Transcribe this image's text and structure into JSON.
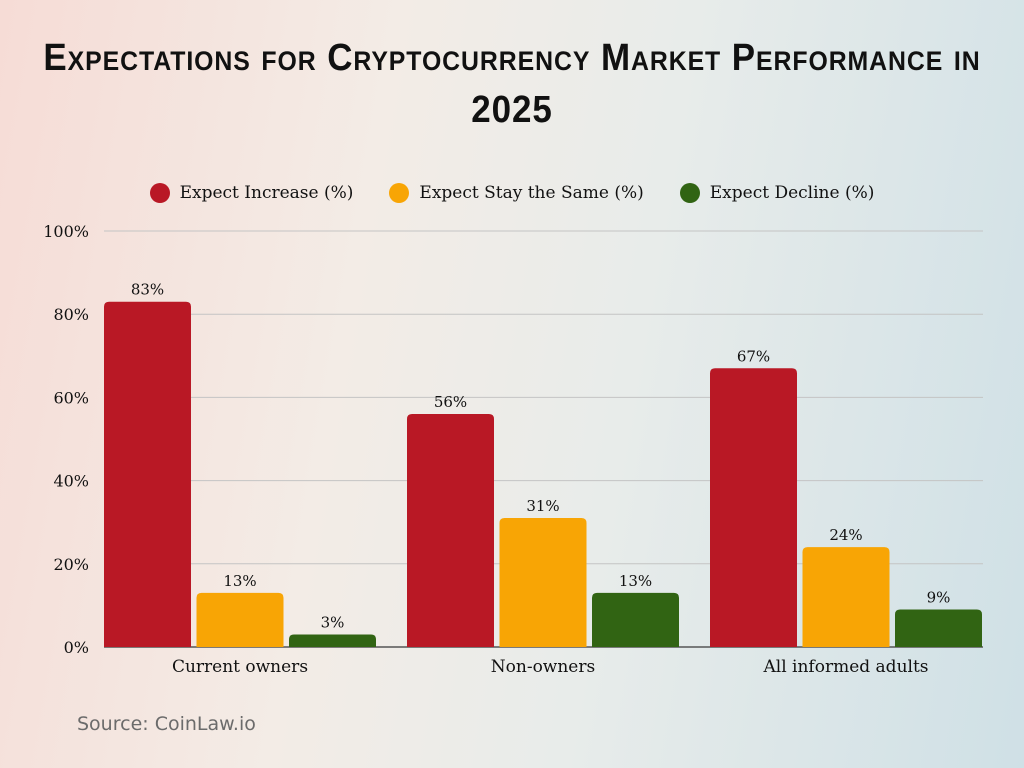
{
  "chart_data": {
    "type": "bar",
    "title": "Expectations for Cryptocurrency Market Performance in 2025",
    "categories": [
      "Current owners",
      "Non-owners",
      "All informed adults"
    ],
    "series": [
      {
        "name": "Expect Increase (%)",
        "color": "#b91825",
        "values": [
          83,
          56,
          67
        ],
        "labels": [
          "83%",
          "56%",
          "67%"
        ]
      },
      {
        "name": "Expect Stay the Same (%)",
        "color": "#f8a505",
        "values": [
          13,
          31,
          24
        ],
        "labels": [
          "13%",
          "31%",
          "24%"
        ]
      },
      {
        "name": "Expect Decline (%)",
        "color": "#316413",
        "values": [
          3,
          13,
          9
        ],
        "labels": [
          "3%",
          "13%",
          "9%"
        ]
      }
    ],
    "ylim": [
      0,
      100
    ],
    "yticks": [
      0,
      20,
      40,
      60,
      80,
      100
    ],
    "ytick_labels": [
      "0%",
      "20%",
      "40%",
      "60%",
      "80%",
      "100%"
    ],
    "grid": true,
    "legend": "top"
  },
  "source": "Source: CoinLaw.io"
}
